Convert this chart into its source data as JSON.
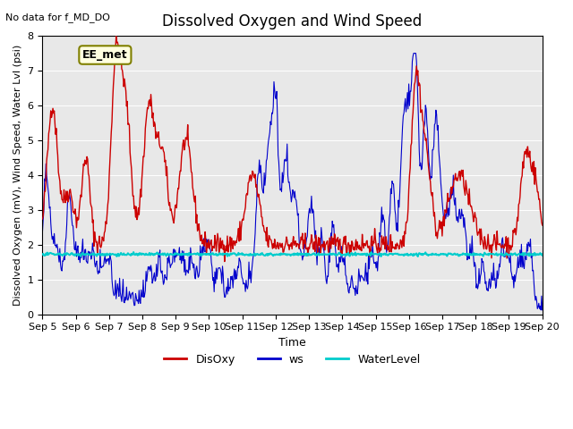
{
  "title": "Dissolved Oxygen and Wind Speed",
  "xlabel": "Time",
  "ylabel": "Dissolved Oxygen (mV), Wind Speed, Water Lvl (psi)",
  "top_left_text": "No data for f_MD_DO",
  "annotation_box": "EE_met",
  "ylim": [
    0.0,
    8.0
  ],
  "yticks": [
    0.0,
    1.0,
    2.0,
    3.0,
    4.0,
    5.0,
    6.0,
    7.0,
    8.0
  ],
  "xticklabels": [
    "Sep 5",
    "Sep 6",
    "Sep 7",
    "Sep 8",
    "Sep 9",
    "Sep 10",
    "Sep 11",
    "Sep 12",
    "Sep 13",
    "Sep 14",
    "Sep 15",
    "Sep 16",
    "Sep 17",
    "Sep 18",
    "Sep 19",
    "Sep 20"
  ],
  "disoxy_color": "#cc0000",
  "ws_color": "#0000cc",
  "waterlevel_color": "#00cccc",
  "background_color": "#e8e8e8",
  "legend_labels": [
    "DisOxy",
    "ws",
    "WaterLevel"
  ],
  "water_level_value": 1.72,
  "n_days": 15,
  "n_points_per_day": 48
}
